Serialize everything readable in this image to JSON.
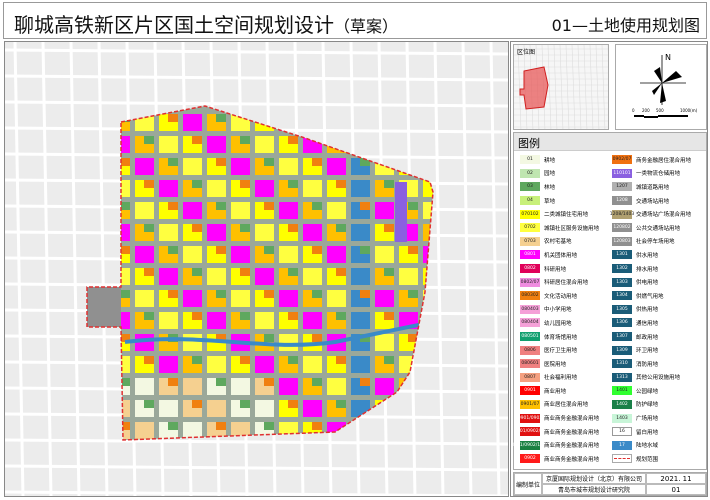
{
  "header": {
    "title": "聊城高铁新区片区国土空间规划设计",
    "title_suffix": "（草案）",
    "sheet": "01—土地使用规划图"
  },
  "locator": {
    "label": "区位图",
    "highlight_color": "#e85050"
  },
  "compass": {
    "north": "N",
    "scale_ticks": [
      "0",
      "200",
      "500",
      "1000(m)"
    ]
  },
  "legend": {
    "title": "图例",
    "left": [
      {
        "code": "01",
        "label": "耕地",
        "color": "#f3f8e2"
      },
      {
        "code": "02",
        "label": "园地",
        "color": "#bfe6b0"
      },
      {
        "code": "03",
        "label": "林地",
        "color": "#5ea85e"
      },
      {
        "code": "04",
        "label": "草地",
        "color": "#c8f07a"
      },
      {
        "code": "070102",
        "label": "二类城镇住宅用地",
        "color": "#ffff00"
      },
      {
        "code": "0702",
        "label": "城镇社区服务设施用地",
        "color": "#ffff40"
      },
      {
        "code": "0703",
        "label": "农村宅基地",
        "color": "#f5d090"
      },
      {
        "code": "0801",
        "label": "机关团体用地",
        "color": "#ff00ff"
      },
      {
        "code": "0802",
        "label": "科研用地",
        "color": "#e0005a"
      },
      {
        "code": "0802/07",
        "label": "科研居住混合用地",
        "color": "#f08ce0"
      },
      {
        "code": "080302",
        "label": "文化活动用地",
        "color": "#f08010"
      },
      {
        "code": "080403",
        "label": "中小学用地",
        "color": "#f5a0d8"
      },
      {
        "code": "080404",
        "label": "幼儿园用地",
        "color": "#f5a0d8"
      },
      {
        "code": "080501",
        "label": "体育场馆用地",
        "color": "#12a070"
      },
      {
        "code": "0806",
        "label": "医疗卫生用地",
        "color": "#f08080"
      },
      {
        "code": "080601",
        "label": "医院用地",
        "color": "#f08080"
      },
      {
        "code": "0807",
        "label": "社会福利用地",
        "color": "#f5a080"
      },
      {
        "code": "0901",
        "label": "商业用地",
        "color": "#ff0000"
      },
      {
        "code": "0901/07",
        "label": "商业居住混合用地",
        "color": "#ffc000"
      },
      {
        "code": "0901/0902",
        "label": "商业商务金融混合用地",
        "color": "#e01010"
      },
      {
        "code": "0901/0902/07",
        "label": "商业商务金融混合用地",
        "color": "#e01010"
      },
      {
        "code": "0901/0902/1403",
        "label": "商业商务金融混合用地",
        "color": "#1a8040"
      },
      {
        "code": "0902",
        "label": "商业商务金融混合用地",
        "color": "#ff1a1a"
      }
    ],
    "right": [
      {
        "code": "0902/07",
        "label": "商务金融居住混合用地",
        "color": "#f07010"
      },
      {
        "code": "110101",
        "label": "一类物流仓储用地",
        "color": "#8a60e0"
      },
      {
        "code": "1207",
        "label": "城镇道路用地",
        "color": "#b0b0b0"
      },
      {
        "code": "1208",
        "label": "交通场站用地",
        "color": "#909090"
      },
      {
        "code": "1208/1403",
        "label": "交通场站广场混合用地",
        "color": "#b0a070"
      },
      {
        "code": "120802",
        "label": "公共交通场站用地",
        "color": "#909090"
      },
      {
        "code": "120803",
        "label": "社会停车场用地",
        "color": "#909090"
      },
      {
        "code": "1301",
        "label": "供水用地",
        "color": "#1a5c78"
      },
      {
        "code": "1302",
        "label": "排水用地",
        "color": "#1a5c78"
      },
      {
        "code": "1303",
        "label": "供电用地",
        "color": "#1a5c78"
      },
      {
        "code": "1304",
        "label": "供燃气用地",
        "color": "#1a5c78"
      },
      {
        "code": "1305",
        "label": "供热用地",
        "color": "#1a5c78"
      },
      {
        "code": "1306",
        "label": "通信用地",
        "color": "#1a5c78"
      },
      {
        "code": "1307",
        "label": "邮政用地",
        "color": "#1a5c78"
      },
      {
        "code": "1309",
        "label": "环卫用地",
        "color": "#1a5c78"
      },
      {
        "code": "1310",
        "label": "消防用地",
        "color": "#1a5c78"
      },
      {
        "code": "1313",
        "label": "其他公用设施用地",
        "color": "#1a5c78"
      },
      {
        "code": "1401",
        "label": "公园绿地",
        "color": "#30ff30"
      },
      {
        "code": "1402",
        "label": "防护绿地",
        "color": "#1a8048"
      },
      {
        "code": "1403",
        "label": "广场用地",
        "color": "#c8f5d8"
      },
      {
        "code": "16",
        "label": "留白用地",
        "color": "#ffffff"
      },
      {
        "code": "17",
        "label": "陆地水域",
        "color": "#3a8ac8"
      },
      {
        "code": "",
        "label": "规划范围",
        "color": "#e03030"
      }
    ]
  },
  "footer": {
    "unit_label": "编制单位",
    "org1": "京厦国际规划设计（北京）有限公司",
    "org2": "青岛市城市规划设计研究院",
    "date": "2021. 11",
    "sheet_no": "01"
  }
}
